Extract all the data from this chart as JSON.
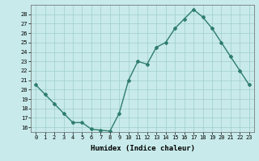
{
  "xlabel": "Humidex (Indice chaleur)",
  "x_values": [
    0,
    1,
    2,
    3,
    4,
    5,
    6,
    7,
    8,
    9,
    10,
    11,
    12,
    13,
    14,
    15,
    16,
    17,
    18,
    19,
    20,
    21,
    22,
    23
  ],
  "y_values": [
    20.5,
    19.5,
    18.5,
    17.5,
    16.5,
    16.5,
    15.8,
    15.7,
    15.6,
    17.5,
    21.0,
    23.0,
    22.7,
    24.5,
    25.0,
    26.5,
    27.5,
    28.5,
    27.7,
    26.5,
    25.0,
    23.5,
    22.0,
    20.5
  ],
  "line_color": "#2e7d6e",
  "marker": "D",
  "marker_size": 2,
  "bg_color": "#c8eaea",
  "grid_color": "#a0cccc",
  "ylim": [
    15.5,
    29.0
  ],
  "yticks": [
    16,
    17,
    18,
    19,
    20,
    21,
    22,
    23,
    24,
    25,
    26,
    27,
    28
  ],
  "xlim": [
    -0.5,
    23.5
  ],
  "xticks": [
    0,
    1,
    2,
    3,
    4,
    5,
    6,
    7,
    8,
    9,
    10,
    11,
    12,
    13,
    14,
    15,
    16,
    17,
    18,
    19,
    20,
    21,
    22,
    23
  ],
  "tick_label_fontsize": 5.0,
  "xlabel_fontsize": 6.5,
  "line_width": 1.0
}
